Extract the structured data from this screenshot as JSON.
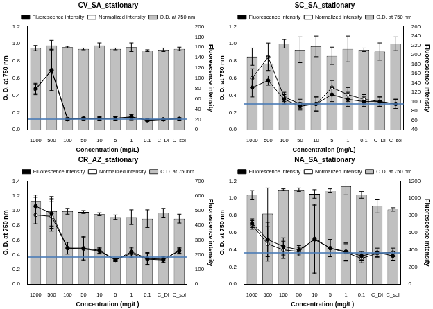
{
  "chart_data": [
    {
      "type": "bar",
      "title": "CV_SA_stationary",
      "x_label": "Concentration (mg/L)",
      "y_label": "O. D. at 750 nm",
      "y2_label": "Fluorescence intensity",
      "categories": [
        "1000",
        "500",
        "100",
        "50",
        "10",
        "5",
        "1",
        "0.1",
        "C_DI",
        "C_sol"
      ],
      "series": [
        {
          "name": "O.D. at 750 nm",
          "type": "bar",
          "color": "#c0c0c0",
          "axis": "y",
          "values": [
            0.95,
            0.98,
            0.96,
            0.94,
            0.98,
            0.94,
            0.96,
            0.92,
            0.93,
            0.94
          ],
          "errors": [
            0.03,
            0.06,
            0.01,
            0.01,
            0.03,
            0.01,
            0.05,
            0.01,
            0.02,
            0.02
          ]
        },
        {
          "name": "Fluorescence intensity",
          "type": "line",
          "color": "#000000",
          "marker": "circle",
          "axis": "y2",
          "values": [
            80,
            115,
            20,
            22,
            22,
            22,
            25,
            18,
            20,
            21
          ],
          "errors": [
            10,
            40,
            2,
            2,
            3,
            3,
            5,
            2,
            2,
            2
          ]
        },
        {
          "name": "Normalized intensity",
          "type": "line",
          "color": "#000000",
          "marker": "open_circle",
          "axis": "y2",
          "values": [
            78,
            116,
            21,
            21,
            21,
            22,
            24,
            19,
            20,
            21
          ],
          "errors": [
            10,
            40,
            2,
            2,
            3,
            3,
            5,
            2,
            2,
            2
          ]
        }
      ],
      "ylim": [
        0,
        1.2
      ],
      "yticks": [
        {
          "value": 0,
          "label": "0.0"
        },
        {
          "value": 0.2,
          "label": "0.2"
        },
        {
          "value": 0.4,
          "label": "0.4"
        },
        {
          "value": 0.6,
          "label": "0.6"
        },
        {
          "value": 0.8,
          "label": "0.8"
        },
        {
          "value": 1,
          "label": "1.0"
        },
        {
          "value": 1.2,
          "label": "1.2"
        }
      ],
      "y2lim": [
        0,
        200
      ],
      "y2ticks": [
        0,
        20,
        40,
        60,
        80,
        100,
        120,
        140,
        160,
        180,
        200
      ],
      "reference_line": {
        "axis": "y2",
        "value": 21,
        "color": "#4a7ab5"
      },
      "grid": false,
      "legend": "top"
    },
    {
      "type": "bar",
      "title": "SC_SA_stationary",
      "x_label": "Concentration (mg/L)",
      "y_label": "O. D. at 750 nm",
      "y2_label": "Fluorescence intensity",
      "categories": [
        "1000",
        "500",
        "100",
        "50",
        "10",
        "5",
        "1",
        "0.1",
        "C_DI",
        "C_sol"
      ],
      "series": [
        {
          "name": "O.D. at 750 nm",
          "type": "bar",
          "color": "#c0c0c0",
          "axis": "y",
          "values": [
            0.85,
            0.77,
            1.0,
            0.93,
            0.97,
            0.86,
            0.94,
            0.93,
            0.91,
            1.0
          ],
          "errors": [
            0.1,
            0.08,
            0.05,
            0.15,
            0.12,
            0.1,
            0.15,
            0.02,
            0.1,
            0.08
          ]
        },
        {
          "name": "Fluorescence intensity",
          "type": "line",
          "color": "#000000",
          "marker": "circle",
          "axis": "y2",
          "values": [
            130,
            145,
            105,
            90,
            95,
            115,
            105,
            100,
            100,
            95
          ],
          "errors": [
            20,
            10,
            10,
            8,
            15,
            15,
            15,
            10,
            10,
            10
          ]
        },
        {
          "name": "Normalized intensity",
          "type": "line",
          "color": "#000000",
          "marker": "open_circle",
          "axis": "y2",
          "values": [
            150,
            195,
            110,
            95,
            95,
            130,
            115,
            105,
            100,
            95
          ],
          "errors": [
            20,
            30,
            10,
            10,
            15,
            15,
            15,
            10,
            10,
            10
          ]
        }
      ],
      "ylim": [
        0,
        1.2
      ],
      "yticks": [
        {
          "value": 0,
          "label": "0.0"
        },
        {
          "value": 0.2,
          "label": "0.2"
        },
        {
          "value": 0.4,
          "label": "0.4"
        },
        {
          "value": 0.6,
          "label": "0.6"
        },
        {
          "value": 0.8,
          "label": "0.8"
        },
        {
          "value": 1,
          "label": "1.0"
        },
        {
          "value": 1.2,
          "label": "1.2"
        }
      ],
      "y2lim": [
        40,
        260
      ],
      "y2ticks": [
        40,
        60,
        80,
        100,
        120,
        140,
        160,
        180,
        200,
        220,
        240,
        260
      ],
      "reference_line": {
        "axis": "y2",
        "value": 95,
        "color": "#4a7ab5"
      },
      "grid": false,
      "legend": "top"
    },
    {
      "type": "bar",
      "title": "CR_AZ_stationary",
      "x_label": "Concentration (mg/L)",
      "y_label": "O. D. at 750 nm",
      "y2_label": "Fluorescence intensity",
      "categories": [
        "1000",
        "500",
        "100",
        "50",
        "10",
        "5",
        "1",
        "0.1",
        "C_DI",
        "C_sol"
      ],
      "series": [
        {
          "name": "O.D. at 750nm",
          "type": "bar",
          "color": "#c0c0c0",
          "axis": "y",
          "values": [
            1.13,
            0.99,
            0.99,
            0.98,
            0.95,
            0.91,
            0.91,
            0.89,
            0.97,
            0.89
          ],
          "errors": [
            0.08,
            0.2,
            0.04,
            0.02,
            0.02,
            0.03,
            0.1,
            0.12,
            0.06,
            0.06
          ]
        },
        {
          "name": "Fluorescence intensity",
          "type": "line",
          "color": "#000000",
          "marker": "circle",
          "axis": "y2",
          "values": [
            530,
            480,
            245,
            245,
            230,
            165,
            220,
            175,
            170,
            225
          ],
          "errors": [
            60,
            100,
            40,
            80,
            20,
            10,
            30,
            40,
            20,
            20
          ]
        },
        {
          "name": "Normalized intensity",
          "type": "line",
          "color": "#000000",
          "marker": "open_circle",
          "axis": "y2",
          "values": [
            470,
            460,
            245,
            240,
            225,
            165,
            210,
            170,
            165,
            230
          ],
          "errors": [
            60,
            100,
            40,
            80,
            20,
            10,
            30,
            40,
            20,
            20
          ]
        }
      ],
      "ylim": [
        0,
        1.4
      ],
      "yticks": [
        {
          "value": 0,
          "label": "0.0"
        },
        {
          "value": 0.2,
          "label": "0.2"
        },
        {
          "value": 0.4,
          "label": "0.4"
        },
        {
          "value": 0.6,
          "label": "0.6"
        },
        {
          "value": 0.8,
          "label": "0.8"
        },
        {
          "value": 1,
          "label": "1.0"
        },
        {
          "value": 1.2,
          "label": "1.2"
        },
        {
          "value": 1.4,
          "label": "1.4"
        }
      ],
      "y2lim": [
        0,
        700
      ],
      "y2ticks": [
        0,
        100,
        200,
        300,
        400,
        500,
        600,
        700
      ],
      "reference_line": {
        "axis": "y2",
        "value": 185,
        "color": "#4a7ab5"
      },
      "grid": false,
      "legend": "top"
    },
    {
      "type": "bar",
      "title": "NA_SA_stationary",
      "x_label": "Concentration (mg/L)",
      "y_label": "O. D. at 750 nm",
      "y2_label": "Fluorescence intensity",
      "categories": [
        "1000",
        "500",
        "100",
        "50",
        "10",
        "5",
        "1",
        "0.1",
        "C_DI",
        "C_sol"
      ],
      "series": [
        {
          "name": "O.D. at 750 nm",
          "type": "bar",
          "color": "#c0c0c0",
          "axis": "y",
          "values": [
            1.04,
            0.82,
            1.1,
            1.1,
            1.05,
            1.09,
            1.14,
            1.04,
            0.91,
            0.87
          ],
          "errors": [
            0.05,
            0.3,
            0.01,
            0.02,
            0.05,
            0.02,
            0.1,
            0.04,
            0.08,
            0.02
          ]
        },
        {
          "name": "Fluorescence intensity",
          "type": "line",
          "color": "#000000",
          "marker": "circle",
          "axis": "y2",
          "values": [
            710,
            520,
            440,
            400,
            520,
            420,
            380,
            330,
            370,
            330
          ],
          "errors": [
            50,
            200,
            100,
            50,
            400,
            100,
            100,
            50,
            50,
            50
          ]
        },
        {
          "name": "Normalized intensity",
          "type": "line",
          "color": "#000000",
          "marker": "open_circle",
          "axis": "y2",
          "values": [
            690,
            470,
            400,
            380,
            530,
            420,
            370,
            300,
            360,
            370
          ],
          "errors": [
            50,
            200,
            100,
            50,
            400,
            100,
            100,
            50,
            50,
            50
          ]
        }
      ],
      "ylim": [
        0,
        1.2
      ],
      "yticks": [
        {
          "value": 0,
          "label": "0.0"
        },
        {
          "value": 0.2,
          "label": "0.2"
        },
        {
          "value": 0.4,
          "label": "0.4"
        },
        {
          "value": 0.6,
          "label": "0.6"
        },
        {
          "value": 0.8,
          "label": "0.8"
        },
        {
          "value": 1,
          "label": "1.0"
        },
        {
          "value": 1.2,
          "label": "1.2"
        }
      ],
      "y2lim": [
        0,
        1200
      ],
      "y2ticks": [
        0,
        200,
        400,
        600,
        800,
        1000,
        1200
      ],
      "reference_line": {
        "axis": "y2",
        "value": 360,
        "color": "#4a7ab5"
      },
      "grid": false,
      "legend": "top"
    }
  ]
}
